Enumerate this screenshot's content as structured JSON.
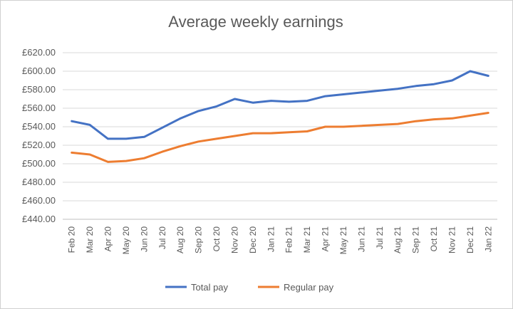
{
  "chart_data": {
    "type": "line",
    "title": "Average weekly earnings",
    "categories": [
      "Feb 20",
      "Mar 20",
      "Apr 20",
      "May 20",
      "Jun 20",
      "Jul 20",
      "Aug 20",
      "Sep 20",
      "Oct 20",
      "Nov 20",
      "Dec 20",
      "Jan 21",
      "Feb 21",
      "Mar 21",
      "Apr 21",
      "May 21",
      "Jun 21",
      "Jul 21",
      "Aug 21",
      "Sep 21",
      "Oct 21",
      "Nov 21",
      "Dec 21",
      "Jan 22"
    ],
    "series": [
      {
        "name": "Total pay",
        "color": "#4472C4",
        "values": [
          546,
          542,
          527,
          527,
          529,
          539,
          549,
          557,
          562,
          570,
          566,
          568,
          567,
          568,
          573,
          575,
          577,
          579,
          581,
          584,
          586,
          590,
          600,
          595
        ]
      },
      {
        "name": "Regular pay",
        "color": "#ED7D31",
        "values": [
          512,
          510,
          502,
          503,
          506,
          513,
          519,
          524,
          527,
          530,
          533,
          533,
          534,
          535,
          540,
          540,
          541,
          542,
          543,
          546,
          548,
          549,
          552,
          555
        ]
      }
    ],
    "ylim": [
      440,
      620
    ],
    "yticks": [
      440,
      460,
      480,
      500,
      520,
      540,
      560,
      580,
      600,
      620
    ],
    "ytick_labels": [
      "£440.00",
      "£460.00",
      "£480.00",
      "£500.00",
      "£520.00",
      "£540.00",
      "£560.00",
      "£580.00",
      "£600.00",
      "£620.00"
    ],
    "grid": true,
    "legend": "bottom"
  }
}
